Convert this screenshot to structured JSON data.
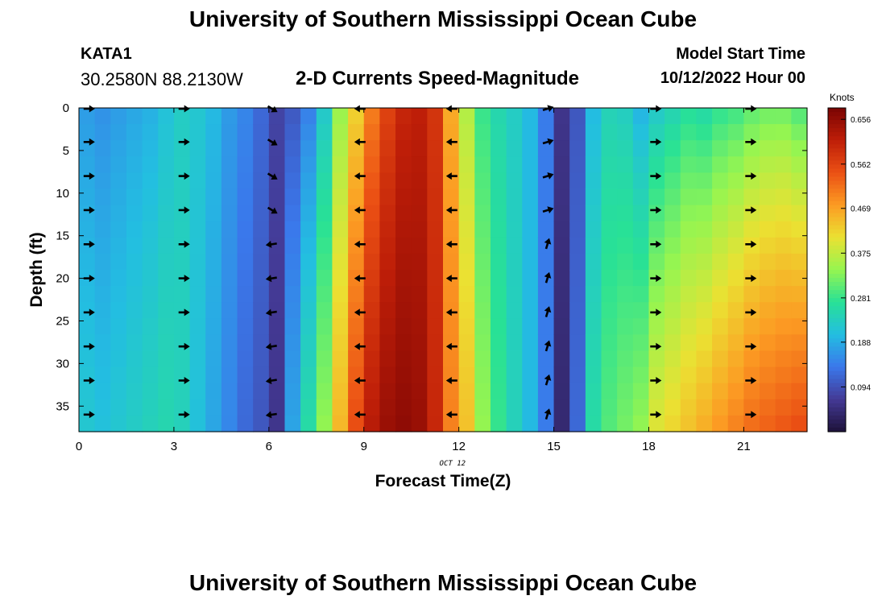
{
  "header": {
    "title": "University of Southern Mississippi Ocean Cube",
    "station": "KATA1",
    "coordinates": "30.2580N  88.2130W",
    "subtitle": "2-D Currents Speed-Magnitude",
    "model_start_label": "Model Start Time",
    "model_start_value": "10/12/2022 Hour 00",
    "bottom_title": "University of Southern Mississippi Ocean Cube"
  },
  "chart_data": {
    "type": "heatmap",
    "title": "2-D Currents Speed-Magnitude",
    "xlabel": "Forecast Time(Z)",
    "ylabel": "Depth (ft)",
    "date_label": "OCT 12",
    "xlim": [
      0,
      23
    ],
    "ylim": [
      0,
      38
    ],
    "y_inverted": true,
    "x_ticks": [
      0,
      3,
      6,
      9,
      12,
      15,
      18,
      21
    ],
    "y_ticks": [
      0,
      5,
      10,
      15,
      20,
      25,
      30,
      35
    ],
    "hours": [
      0,
      0.5,
      1,
      1.5,
      2,
      2.5,
      3,
      3.5,
      4,
      4.5,
      5,
      5.5,
      6,
      6.5,
      7,
      7.5,
      8,
      8.5,
      9,
      9.5,
      10,
      10.5,
      11,
      11.5,
      12,
      12.5,
      13,
      13.5,
      14,
      14.5,
      15,
      15.5,
      16,
      16.5,
      17,
      17.5,
      18,
      18.5,
      19,
      19.5,
      20,
      20.5,
      21,
      21.5,
      22,
      22.5
    ],
    "speed_surface_knots": [
      0.17,
      0.16,
      0.17,
      0.18,
      0.19,
      0.21,
      0.23,
      0.22,
      0.2,
      0.17,
      0.15,
      0.12,
      0.08,
      0.1,
      0.14,
      0.22,
      0.34,
      0.42,
      0.5,
      0.56,
      0.6,
      0.61,
      0.58,
      0.46,
      0.36,
      0.28,
      0.25,
      0.23,
      0.2,
      0.14,
      0.06,
      0.1,
      0.2,
      0.24,
      0.23,
      0.19,
      0.22,
      0.24,
      0.26,
      0.25,
      0.27,
      0.28,
      0.3,
      0.31,
      0.31,
      0.29
    ],
    "speed_bottom_knots": [
      0.22,
      0.21,
      0.22,
      0.23,
      0.24,
      0.25,
      0.24,
      0.21,
      0.18,
      0.15,
      0.12,
      0.1,
      0.06,
      0.18,
      0.26,
      0.34,
      0.45,
      0.55,
      0.62,
      0.65,
      0.66,
      0.65,
      0.6,
      0.5,
      0.44,
      0.34,
      0.28,
      0.24,
      0.2,
      0.14,
      0.04,
      0.12,
      0.26,
      0.3,
      0.32,
      0.34,
      0.4,
      0.42,
      0.44,
      0.46,
      0.48,
      0.5,
      0.52,
      0.53,
      0.54,
      0.55
    ],
    "colorbar": {
      "label": "Knots",
      "ticks": [
        0.656,
        0.562,
        0.469,
        0.375,
        0.281,
        0.188,
        0.094
      ],
      "min": 0.0,
      "max": 0.68
    },
    "vectors": {
      "hours": [
        0.3,
        3.3,
        6.1,
        8.9,
        11.8,
        14.8,
        18.2,
        21.2
      ],
      "depths_ft": [
        0,
        4,
        8,
        12,
        16,
        20,
        24,
        28,
        32,
        36
      ],
      "direction": "east (right) before hour 6, west (left) from hour 6 to 15, turning north at hour 15, east after hour 15"
    }
  }
}
